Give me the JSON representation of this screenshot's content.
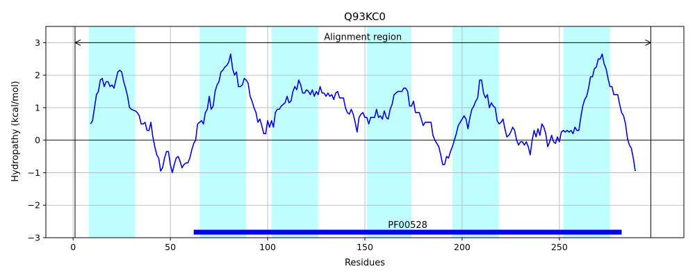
{
  "chart_data": {
    "type": "line",
    "title": "Q93KC0",
    "xlabel": "Residues",
    "ylabel": "Hydropathy (kcal/mol)",
    "xlim": [
      -14,
      314
    ],
    "ylim": [
      -3,
      3.5
    ],
    "xticks": [
      0,
      50,
      100,
      150,
      200,
      250
    ],
    "yticks": [
      -3,
      -2,
      -1,
      0,
      1,
      2,
      3
    ],
    "xtick_labels": [
      "0",
      "50",
      "100",
      "150",
      "200",
      "250"
    ],
    "ytick_labels": [
      "−3",
      "−2",
      "−1",
      "0",
      "1",
      "2",
      "3"
    ],
    "grid": true,
    "series": [
      {
        "color": "#0000dd",
        "points": [
          [
            9,
            0.5
          ],
          [
            10,
            0.6
          ],
          [
            11,
            1.0
          ],
          [
            12,
            1.4
          ],
          [
            13,
            1.5
          ],
          [
            14,
            1.85
          ],
          [
            15,
            1.9
          ],
          [
            16,
            1.65
          ],
          [
            17,
            1.8
          ],
          [
            18,
            1.8
          ],
          [
            19,
            1.65
          ],
          [
            20,
            1.7
          ],
          [
            21,
            1.6
          ],
          [
            22,
            1.85
          ],
          [
            23,
            2.1
          ],
          [
            24,
            2.15
          ],
          [
            25,
            2.1
          ],
          [
            26,
            1.8
          ],
          [
            27,
            1.6
          ],
          [
            28,
            1.35
          ],
          [
            29,
            1.0
          ],
          [
            30,
            0.95
          ],
          [
            31,
            0.92
          ],
          [
            32,
            0.9
          ],
          [
            33,
            0.85
          ],
          [
            34,
            0.75
          ],
          [
            35,
            0.5
          ],
          [
            36,
            0.5
          ],
          [
            37,
            0.55
          ],
          [
            38,
            0.3
          ],
          [
            39,
            0.3
          ],
          [
            40,
            0.55
          ],
          [
            41,
            0.1
          ],
          [
            42,
            -0.2
          ],
          [
            43,
            -0.45
          ],
          [
            44,
            -0.55
          ],
          [
            45,
            -0.95
          ],
          [
            46,
            -0.85
          ],
          [
            47,
            -0.55
          ],
          [
            48,
            -0.35
          ],
          [
            49,
            -0.35
          ],
          [
            50,
            -0.75
          ],
          [
            51,
            -1.0
          ],
          [
            52,
            -0.75
          ],
          [
            53,
            -0.55
          ],
          [
            54,
            -0.5
          ],
          [
            55,
            -0.65
          ],
          [
            56,
            -0.85
          ],
          [
            57,
            -0.75
          ],
          [
            58,
            -0.7
          ],
          [
            59,
            -0.7
          ],
          [
            60,
            -0.55
          ],
          [
            61,
            -0.3
          ],
          [
            62,
            -0.1
          ],
          [
            63,
            0.0
          ],
          [
            64,
            0.5
          ],
          [
            65,
            0.55
          ],
          [
            66,
            0.6
          ],
          [
            67,
            0.5
          ],
          [
            68,
            0.85
          ],
          [
            69,
            0.95
          ],
          [
            70,
            1.35
          ],
          [
            71,
            0.95
          ],
          [
            72,
            1.05
          ],
          [
            73,
            1.5
          ],
          [
            74,
            1.7
          ],
          [
            75,
            1.8
          ],
          [
            76,
            2.1
          ],
          [
            77,
            2.15
          ],
          [
            78,
            2.25
          ],
          [
            79,
            2.3
          ],
          [
            80,
            2.4
          ],
          [
            81,
            2.65
          ],
          [
            82,
            2.2
          ],
          [
            83,
            2.0
          ],
          [
            84,
            2.1
          ],
          [
            85,
            1.65
          ],
          [
            86,
            1.65
          ],
          [
            87,
            1.7
          ],
          [
            88,
            1.9
          ],
          [
            89,
            1.85
          ],
          [
            90,
            1.75
          ],
          [
            91,
            1.35
          ],
          [
            92,
            1.2
          ],
          [
            93,
            1.0
          ],
          [
            94,
            0.85
          ],
          [
            95,
            0.55
          ],
          [
            96,
            0.65
          ],
          [
            97,
            0.45
          ],
          [
            98,
            0.2
          ],
          [
            99,
            0.2
          ],
          [
            100,
            0.6
          ],
          [
            101,
            0.4
          ],
          [
            102,
            0.6
          ],
          [
            103,
            0.4
          ],
          [
            104,
            0.85
          ],
          [
            105,
            0.95
          ],
          [
            106,
            0.95
          ],
          [
            107,
            1.05
          ],
          [
            108,
            1.1
          ],
          [
            109,
            1.15
          ],
          [
            110,
            1.35
          ],
          [
            111,
            1.15
          ],
          [
            112,
            1.2
          ],
          [
            113,
            1.5
          ],
          [
            114,
            1.65
          ],
          [
            115,
            1.55
          ],
          [
            116,
            1.85
          ],
          [
            117,
            1.7
          ],
          [
            118,
            1.45
          ],
          [
            119,
            1.45
          ],
          [
            120,
            1.55
          ],
          [
            121,
            1.5
          ],
          [
            122,
            1.4
          ],
          [
            123,
            1.55
          ],
          [
            124,
            1.35
          ],
          [
            125,
            1.5
          ],
          [
            126,
            1.4
          ],
          [
            127,
            1.65
          ],
          [
            128,
            1.45
          ],
          [
            129,
            1.45
          ],
          [
            130,
            1.35
          ],
          [
            131,
            1.45
          ],
          [
            132,
            1.35
          ],
          [
            133,
            1.4
          ],
          [
            134,
            1.25
          ],
          [
            135,
            1.45
          ],
          [
            136,
            1.5
          ],
          [
            137,
            1.3
          ],
          [
            138,
            1.3
          ],
          [
            139,
            1.3
          ],
          [
            140,
            1.0
          ],
          [
            141,
            0.85
          ],
          [
            142,
            0.8
          ],
          [
            143,
            0.95
          ],
          [
            144,
            0.8
          ],
          [
            145,
            0.55
          ],
          [
            146,
            0.25
          ],
          [
            147,
            0.7
          ],
          [
            148,
            0.8
          ],
          [
            149,
            0.85
          ],
          [
            150,
            0.7
          ],
          [
            151,
            0.7
          ],
          [
            152,
            0.5
          ],
          [
            153,
            0.7
          ],
          [
            154,
            0.7
          ],
          [
            155,
            0.7
          ],
          [
            156,
            0.95
          ],
          [
            157,
            0.7
          ],
          [
            158,
            0.75
          ],
          [
            159,
            0.65
          ],
          [
            160,
            0.9
          ],
          [
            161,
            0.7
          ],
          [
            162,
            0.65
          ],
          [
            163,
            0.95
          ],
          [
            164,
            1.1
          ],
          [
            165,
            1.4
          ],
          [
            166,
            1.45
          ],
          [
            167,
            1.5
          ],
          [
            168,
            1.5
          ],
          [
            169,
            1.5
          ],
          [
            170,
            1.6
          ],
          [
            171,
            1.6
          ],
          [
            172,
            1.5
          ],
          [
            173,
            1.05
          ],
          [
            174,
            1.05
          ],
          [
            175,
            1.2
          ],
          [
            176,
            0.85
          ],
          [
            177,
            0.85
          ],
          [
            178,
            0.85
          ],
          [
            179,
            0.65
          ],
          [
            180,
            0.45
          ],
          [
            181,
            0.55
          ],
          [
            182,
            0.55
          ],
          [
            183,
            0.55
          ],
          [
            184,
            0.55
          ],
          [
            185,
            0.15
          ],
          [
            186,
            0.0
          ],
          [
            187,
            -0.1
          ],
          [
            188,
            -0.2
          ],
          [
            189,
            -0.45
          ],
          [
            190,
            -0.75
          ],
          [
            191,
            -0.75
          ],
          [
            192,
            -0.5
          ],
          [
            193,
            -0.55
          ],
          [
            194,
            -0.35
          ],
          [
            195,
            -0.2
          ],
          [
            196,
            0.0
          ],
          [
            197,
            0.2
          ],
          [
            198,
            0.45
          ],
          [
            199,
            0.55
          ],
          [
            200,
            0.65
          ],
          [
            201,
            0.75
          ],
          [
            202,
            0.65
          ],
          [
            203,
            0.35
          ],
          [
            204,
            0.7
          ],
          [
            205,
            0.95
          ],
          [
            206,
            1.05
          ],
          [
            207,
            1.2
          ],
          [
            208,
            1.3
          ],
          [
            209,
            1.85
          ],
          [
            210,
            1.85
          ],
          [
            211,
            1.45
          ],
          [
            212,
            1.3
          ],
          [
            213,
            1.4
          ],
          [
            214,
            1.0
          ],
          [
            215,
            1.15
          ],
          [
            216,
            1.05
          ],
          [
            217,
            1.0
          ],
          [
            218,
            0.6
          ],
          [
            219,
            0.5
          ],
          [
            220,
            0.55
          ],
          [
            221,
            0.65
          ],
          [
            222,
            0.35
          ],
          [
            223,
            0.1
          ],
          [
            224,
            0.15
          ],
          [
            225,
            0.25
          ],
          [
            226,
            0.4
          ],
          [
            227,
            0.3
          ],
          [
            228,
            0.0
          ],
          [
            229,
            -0.15
          ],
          [
            230,
            -0.05
          ],
          [
            231,
            -0.05
          ],
          [
            232,
            -0.15
          ],
          [
            233,
            -0.05
          ],
          [
            234,
            -0.2
          ],
          [
            235,
            -0.45
          ],
          [
            236,
            0.0
          ],
          [
            237,
            0.3
          ],
          [
            238,
            0.1
          ],
          [
            239,
            0.35
          ],
          [
            240,
            0.15
          ],
          [
            241,
            0.5
          ],
          [
            242,
            0.4
          ],
          [
            243,
            0.2
          ],
          [
            244,
            -0.2
          ],
          [
            245,
            -0.05
          ],
          [
            246,
            0.15
          ],
          [
            247,
            -0.05
          ],
          [
            248,
            -0.1
          ],
          [
            249,
            0.1
          ],
          [
            250,
            -0.05
          ],
          [
            251,
            0.25
          ],
          [
            252,
            0.3
          ],
          [
            253,
            0.25
          ],
          [
            254,
            0.3
          ],
          [
            255,
            0.25
          ],
          [
            256,
            0.3
          ],
          [
            257,
            0.2
          ],
          [
            258,
            0.4
          ],
          [
            259,
            0.3
          ],
          [
            260,
            0.3
          ],
          [
            261,
            0.7
          ],
          [
            262,
            1.05
          ],
          [
            263,
            1.25
          ],
          [
            264,
            1.35
          ],
          [
            265,
            1.6
          ],
          [
            266,
            1.95
          ],
          [
            267,
            1.95
          ],
          [
            268,
            2.2
          ],
          [
            269,
            2.25
          ],
          [
            270,
            2.5
          ],
          [
            271,
            2.5
          ],
          [
            272,
            2.65
          ],
          [
            273,
            2.35
          ],
          [
            274,
            2.2
          ],
          [
            275,
            1.9
          ],
          [
            276,
            1.65
          ],
          [
            277,
            1.65
          ],
          [
            278,
            1.4
          ],
          [
            279,
            1.4
          ],
          [
            280,
            1.4
          ],
          [
            281,
            1.1
          ],
          [
            282,
            0.85
          ],
          [
            283,
            0.75
          ],
          [
            284,
            0.5
          ],
          [
            285,
            0.05
          ],
          [
            286,
            -0.15
          ],
          [
            287,
            -0.25
          ],
          [
            288,
            -0.55
          ],
          [
            289,
            -0.95
          ]
        ]
      }
    ],
    "shaded_regions": [
      [
        8,
        32
      ],
      [
        65,
        89
      ],
      [
        102,
        126
      ],
      [
        151,
        174
      ],
      [
        195,
        219
      ],
      [
        252,
        276
      ]
    ],
    "shade_color": "#bfffff",
    "vertical_lines": [
      1,
      297
    ],
    "alignment_region": {
      "label": "Alignment region",
      "start": 1,
      "end": 297,
      "y": 3.0
    },
    "domain_bar": {
      "label": "PF00528",
      "start": 62,
      "end": 282,
      "y": -2.83,
      "color": "#0000ff"
    }
  }
}
